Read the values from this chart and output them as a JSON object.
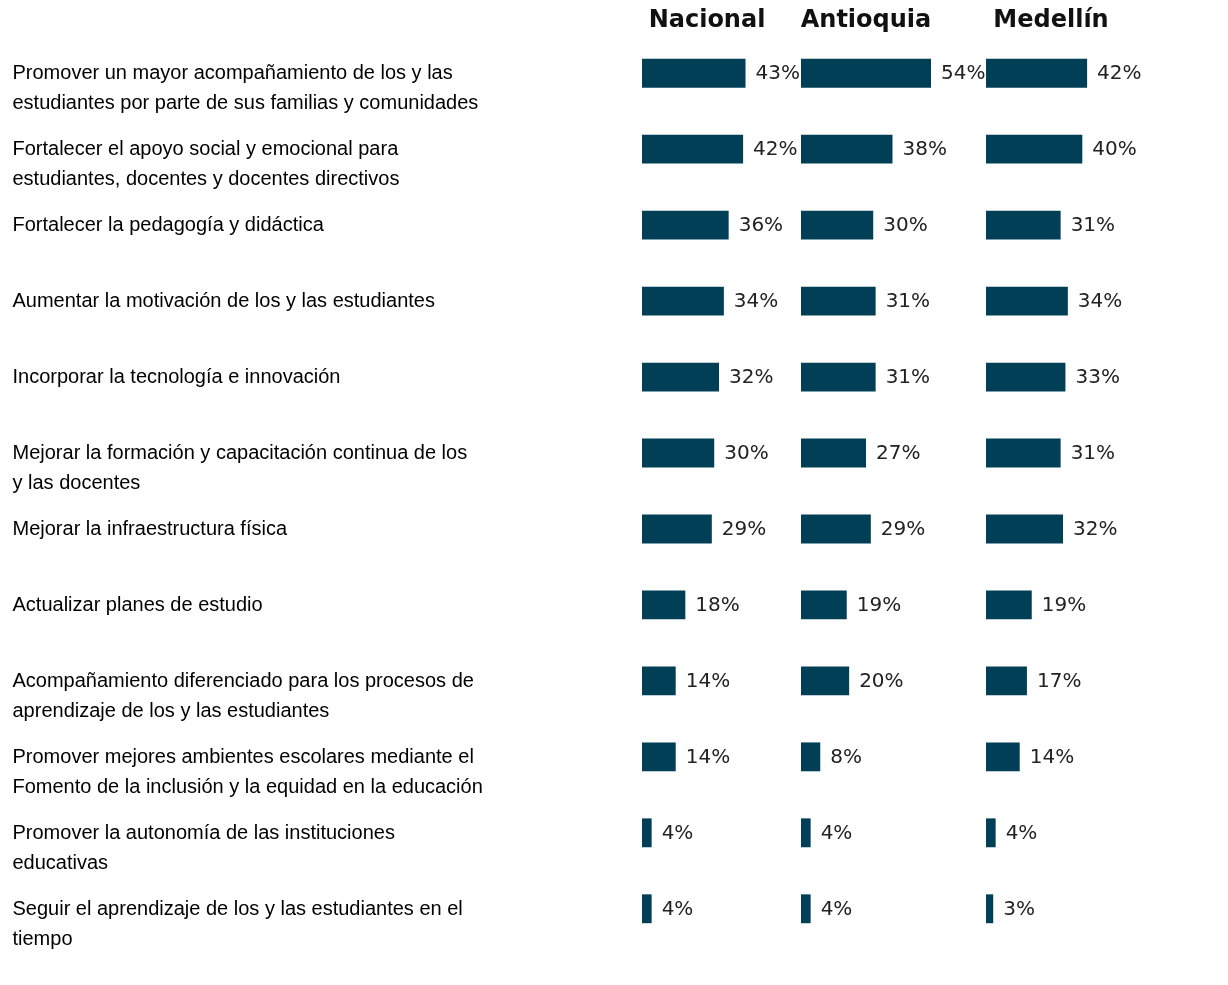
{
  "chart_data": [
    {
      "type": "bar",
      "orientation": "horizontal",
      "title": "Nacional",
      "tick_labels": "y",
      "color": "#003f56",
      "categories": [
        "Promover un mayor acompañamiento de los y las estudiantes por parte de sus familias y comunidades",
        "Fortalecer el apoyo social y emocional para estudiantes, docentes y docentes directivos",
        "Fortalecer la pedagogía y didáctica",
        "Aumentar la motivación de los y las estudiantes",
        "Incorporar la tecnología e innovación",
        "Mejorar la formación y capacitación continua de los y las docentes",
        "Mejorar la infraestructura física",
        "Actualizar planes de estudio",
        "Acompañamiento diferenciado para los procesos de aprendizaje de los y las estudiantes",
        "Promover mejores ambientes escolares mediante el Fomento de la inclusión y la equidad en la educación",
        "Promover la autonomía de las instituciones educativas",
        "Seguir el aprendizaje de los y las estudiantes en el tiempo"
      ],
      "values": [
        43,
        42,
        36,
        34,
        32,
        30,
        29,
        18,
        14,
        14,
        4,
        4
      ],
      "value_labels": [
        "43%",
        "42%",
        "36%",
        "34%",
        "32%",
        "30%",
        "29%",
        "18%",
        "14%",
        "14%",
        "4%",
        "4%"
      ]
    },
    {
      "type": "bar",
      "orientation": "horizontal",
      "title": "Antioquia",
      "tick_labels": false,
      "color": "#003f56",
      "values": [
        54,
        38,
        30,
        31,
        31,
        27,
        29,
        19,
        20,
        8,
        4,
        4
      ],
      "value_labels": [
        "54%",
        "38%",
        "30%",
        "31%",
        "31%",
        "27%",
        "29%",
        "19%",
        "20%",
        "8%",
        "4%",
        "4%"
      ]
    },
    {
      "type": "bar",
      "orientation": "horizontal",
      "title": "Medellín",
      "tick_labels": false,
      "color": "#003f56",
      "values": [
        42,
        40,
        31,
        34,
        33,
        31,
        32,
        19,
        17,
        14,
        4,
        3
      ],
      "value_labels": [
        "42%",
        "40%",
        "31%",
        "34%",
        "33%",
        "31%",
        "32%",
        "19%",
        "17%",
        "14%",
        "4%",
        "3%"
      ]
    }
  ]
}
